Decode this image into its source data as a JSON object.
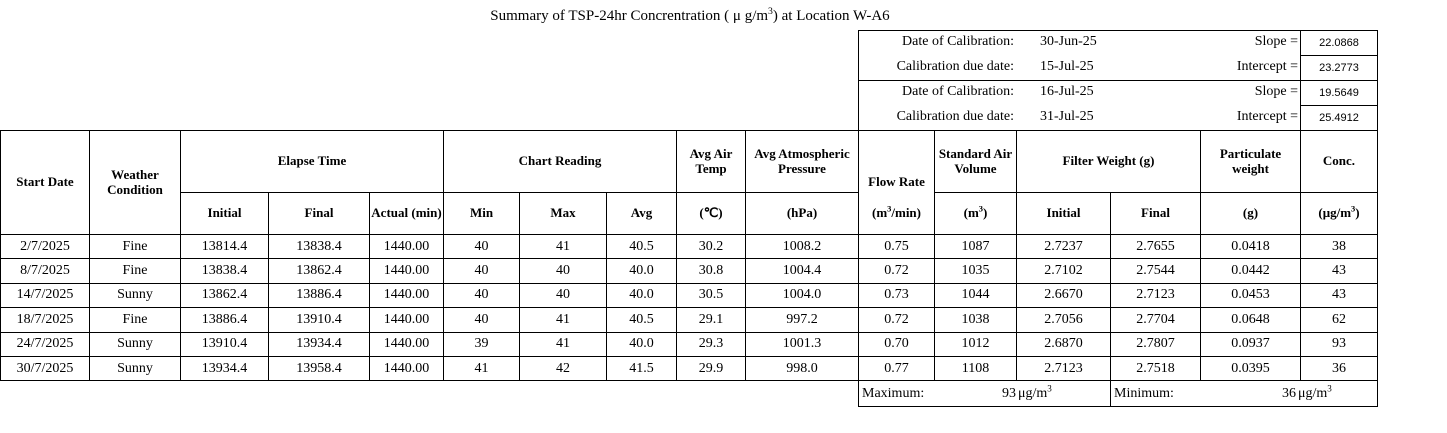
{
  "title": {
    "text": "Summary of TSP-24hr Concrentration ( μ g/m",
    "sup": "3",
    "after": ") at Location W-A6"
  },
  "calibrations": [
    {
      "date_label": "Date of Calibration:",
      "date": "30-Jun-25",
      "due_label": "Calibration due date:",
      "due": "15-Jul-25",
      "slope_label": "Slope =",
      "slope": "22.0868",
      "intercept_label": "Intercept =",
      "intercept": "23.2773"
    },
    {
      "date_label": "Date of Calibration:",
      "date": "16-Jul-25",
      "due_label": "Calibration due date:",
      "due": "31-Jul-25",
      "slope_label": "Slope =",
      "slope": "19.5649",
      "intercept_label": "Intercept =",
      "intercept": "25.4912"
    }
  ],
  "table": {
    "headers_top": [
      "Start Date",
      "Weather Condition",
      "Elapse Time",
      "Chart Reading",
      "Avg Air Temp",
      "Avg Atmospheric Pressure",
      "Flow Rate",
      "Standard Air Volume",
      "Filter Weight (g)",
      "Particulate weight",
      "Conc."
    ],
    "headers_sub": [
      "Initial",
      "Final",
      "Actual (min)",
      "Min",
      "Max",
      "Avg",
      "(℃)",
      "(hPa)",
      {
        "text": "(m",
        "sup": "3",
        "after": "/min)"
      },
      {
        "text": "(m",
        "sup": "3",
        "after": ")"
      },
      "Initial",
      "Final",
      "(g)",
      {
        "text": "(μg/m",
        "sup": "3",
        "after": ")"
      }
    ],
    "rows": [
      [
        "2/7/2025",
        "Fine",
        "13814.4",
        "13838.4",
        "1440.00",
        "40",
        "41",
        "40.5",
        "30.2",
        "1008.2",
        "0.75",
        "1087",
        "2.7237",
        "2.7655",
        "0.0418",
        "38"
      ],
      [
        "8/7/2025",
        "Fine",
        "13838.4",
        "13862.4",
        "1440.00",
        "40",
        "40",
        "40.0",
        "30.8",
        "1004.4",
        "0.72",
        "1035",
        "2.7102",
        "2.7544",
        "0.0442",
        "43"
      ],
      [
        "14/7/2025",
        "Sunny",
        "13862.4",
        "13886.4",
        "1440.00",
        "40",
        "40",
        "40.0",
        "30.5",
        "1004.0",
        "0.73",
        "1044",
        "2.6670",
        "2.7123",
        "0.0453",
        "43"
      ],
      [
        "18/7/2025",
        "Fine",
        "13886.4",
        "13910.4",
        "1440.00",
        "40",
        "41",
        "40.5",
        "29.1",
        "997.2",
        "0.72",
        "1038",
        "2.7056",
        "2.7704",
        "0.0648",
        "62"
      ],
      [
        "24/7/2025",
        "Sunny",
        "13910.4",
        "13934.4",
        "1440.00",
        "39",
        "41",
        "40.0",
        "29.3",
        "1001.3",
        "0.70",
        "1012",
        "2.6870",
        "2.7807",
        "0.0937",
        "93"
      ],
      [
        "30/7/2025",
        "Sunny",
        "13934.4",
        "13958.4",
        "1440.00",
        "41",
        "42",
        "41.5",
        "29.9",
        "998.0",
        "0.77",
        "1108",
        "2.7123",
        "2.7518",
        "0.0395",
        "36"
      ]
    ]
  },
  "summary": {
    "max_label": "Maximum:",
    "max": "93",
    "min_label": "Minimum:",
    "min": "36",
    "unit": {
      "text": "μg/m",
      "sup": "3",
      "after": ""
    }
  }
}
